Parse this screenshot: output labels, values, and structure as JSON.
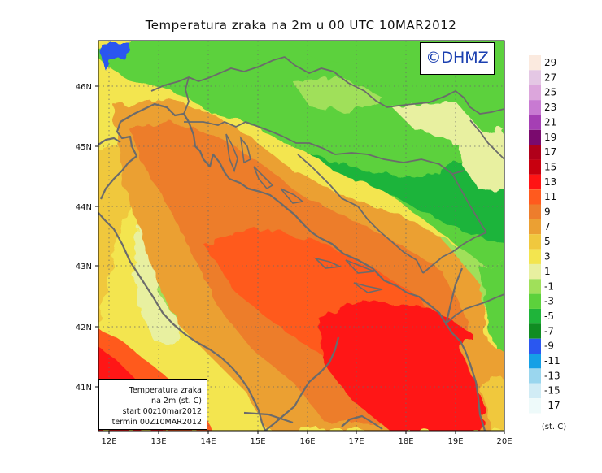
{
  "title": "Temperatura zraka na 2m u 00 UTC 10MAR2012",
  "logo": "©DHMZ",
  "info_box": {
    "line1": "Temperatura zraka",
    "line2": "na 2m (st. C)",
    "line3": "start 00z10mar2012",
    "line4": "termin 00Z10MAR2012"
  },
  "axes": {
    "lat_labels": [
      "46N",
      "45N",
      "44N",
      "43N",
      "42N",
      "41N"
    ],
    "lat_values": [
      46,
      45,
      44,
      43,
      42,
      41
    ],
    "lon_labels": [
      "12E",
      "13E",
      "14E",
      "15E",
      "16E",
      "17E",
      "18E",
      "19E",
      "20E"
    ],
    "lon_values": [
      12,
      13,
      14,
      15,
      16,
      17,
      18,
      19,
      20
    ],
    "lon_range": [
      11.8,
      20.0
    ],
    "lat_range": [
      40.25,
      46.8
    ],
    "grid": "dotted"
  },
  "colorbar": {
    "labels": [
      "29",
      "27",
      "25",
      "23",
      "21",
      "19",
      "17",
      "15",
      "13",
      "11",
      "9",
      "7",
      "5",
      "3",
      "1",
      "-1",
      "-3",
      "-5",
      "-7",
      "-9",
      "-11",
      "-13",
      "-15",
      "-17"
    ],
    "colors": [
      "#fbeadf",
      "#e4c7e4",
      "#dca6dc",
      "#c87ad2",
      "#a53fb4",
      "#7a0a6e",
      "#b0001a",
      "#c8000f",
      "#ff1414",
      "#ff5a1e",
      "#ed7d2c",
      "#eba033",
      "#f0c83e",
      "#f3e54f",
      "#e8f0a0",
      "#a0e05a",
      "#5cd13c",
      "#1fb43a",
      "#108c22",
      "#2a57f0",
      "#15a0e6",
      "#9ad6ee",
      "#d1ecf5",
      "#eefafa"
    ],
    "unit": "(st. C)"
  }
}
